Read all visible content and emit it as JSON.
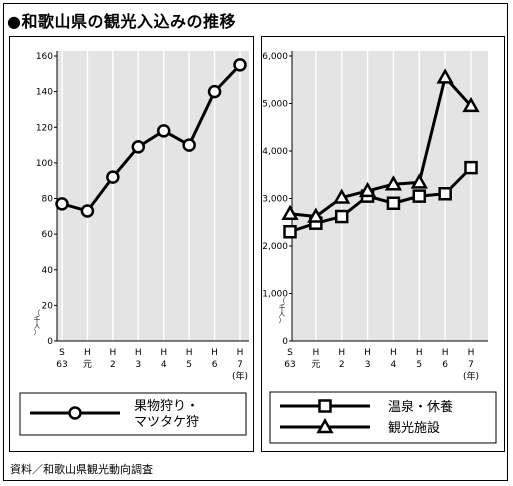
{
  "title": "●和歌山県の観光入込みの推移",
  "source": "資料／和歌山県観光動向調査",
  "chart_data": [
    {
      "type": "line",
      "unit_label": "（千人）",
      "x_labels": [
        [
          "S",
          "63"
        ],
        [
          "H",
          "元"
        ],
        [
          "H",
          "2"
        ],
        [
          "H",
          "3"
        ],
        [
          "H",
          "4"
        ],
        [
          "H",
          "5"
        ],
        [
          "H",
          "6"
        ],
        [
          "H",
          "7"
        ]
      ],
      "x_unit": "(年)",
      "yticks": [
        "0",
        "20",
        "40",
        "60",
        "80",
        "100",
        "120",
        "140",
        "160"
      ],
      "ylim": [
        0,
        160
      ],
      "grid": "vertical",
      "series": [
        {
          "name_lines": [
            "果物狩り・",
            "マツタケ狩"
          ],
          "marker": "circle",
          "values": [
            77,
            73,
            92,
            109,
            118,
            110,
            140,
            155
          ]
        }
      ]
    },
    {
      "type": "line",
      "unit_label": "（千人）",
      "x_labels": [
        [
          "S",
          "63"
        ],
        [
          "H",
          "元"
        ],
        [
          "H",
          "2"
        ],
        [
          "H",
          "3"
        ],
        [
          "H",
          "4"
        ],
        [
          "H",
          "5"
        ],
        [
          "H",
          "6"
        ],
        [
          "H",
          "7"
        ]
      ],
      "x_unit": "(年)",
      "yticks": [
        "0",
        "1,000",
        "2,000",
        "3,000",
        "4,000",
        "5,000",
        "6,000"
      ],
      "ylim": [
        0,
        6000
      ],
      "grid": "vertical",
      "series": [
        {
          "name_lines": [
            "温泉・休養"
          ],
          "marker": "square",
          "values": [
            2300,
            2480,
            2620,
            3050,
            2900,
            3050,
            3100,
            3650
          ]
        },
        {
          "name_lines": [
            "観光施設"
          ],
          "marker": "triangle",
          "values": [
            2680,
            2620,
            3020,
            3160,
            3300,
            3340,
            5550,
            4950
          ]
        }
      ]
    }
  ]
}
